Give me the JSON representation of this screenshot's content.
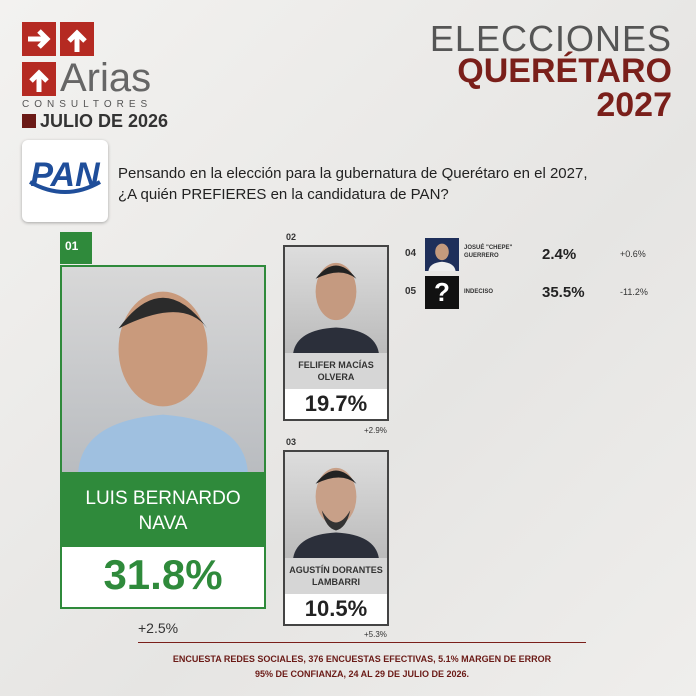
{
  "logo": {
    "name": "Arias",
    "subtitle": "CONSULTORES",
    "date": "JULIO DE 2026"
  },
  "header": {
    "line1": "ELECCIONES",
    "line2": "QUERÉTARO",
    "line3": "2027"
  },
  "party": "PAN",
  "question": {
    "line1": "Pensando en la elección para la gubernatura de Querétaro en el 2027,",
    "line2": "¿A quién PREFIERES en la candidatura de PAN?"
  },
  "candidates": [
    {
      "rank": "01",
      "name": "LUIS BERNARDO NAVA",
      "value": "31.8%",
      "change": "+2.5%"
    },
    {
      "rank": "02",
      "name": "FELIFER MACÍAS OLVERA",
      "value": "19.7%",
      "change": "+2.9%"
    },
    {
      "rank": "03",
      "name": "AGUSTÍN DORANTES LAMBARRI",
      "value": "10.5%",
      "change": "+5.3%"
    },
    {
      "rank": "04",
      "name": "JOSUÉ \"CHEPE\" GUERRERO",
      "value": "2.4%",
      "change": "+0.6%"
    },
    {
      "rank": "05",
      "name": "INDECISO",
      "value": "35.5%",
      "change": "-11.2%",
      "icon": "?"
    }
  ],
  "footer": {
    "line1": "ENCUESTA REDES SOCIALES, 376 ENCUESTAS EFECTIVAS, 5.1%  MARGEN DE ERROR",
    "line2": "95% DE CONFIANZA, 24 AL 29 DE JULIO DE 2026."
  }
}
